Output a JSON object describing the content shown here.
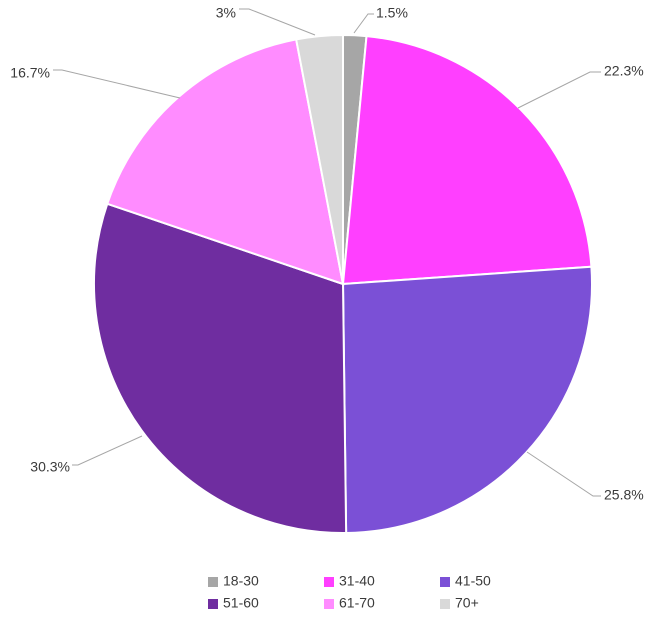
{
  "chart_data": {
    "type": "pie",
    "title": "",
    "slices": [
      {
        "label": "18-30",
        "value": 1.5,
        "display": "1.5%",
        "color": "#a6a6a6"
      },
      {
        "label": "31-40",
        "value": 22.3,
        "display": "22.3%",
        "color": "#ff3fff"
      },
      {
        "label": "41-50",
        "value": 25.8,
        "display": "25.8%",
        "color": "#7b50d6"
      },
      {
        "label": "51-60",
        "value": 30.3,
        "display": "30.3%",
        "color": "#6f2da0"
      },
      {
        "label": "61-70",
        "value": 16.7,
        "display": "16.7%",
        "color": "#ff8cff"
      },
      {
        "label": "70+",
        "value": 3.0,
        "display": "3%",
        "color": "#d9d9d9"
      }
    ],
    "legend_position": "bottom",
    "slice_border_color": "#ffffff",
    "leader_line_color": "#a6a6a6"
  }
}
